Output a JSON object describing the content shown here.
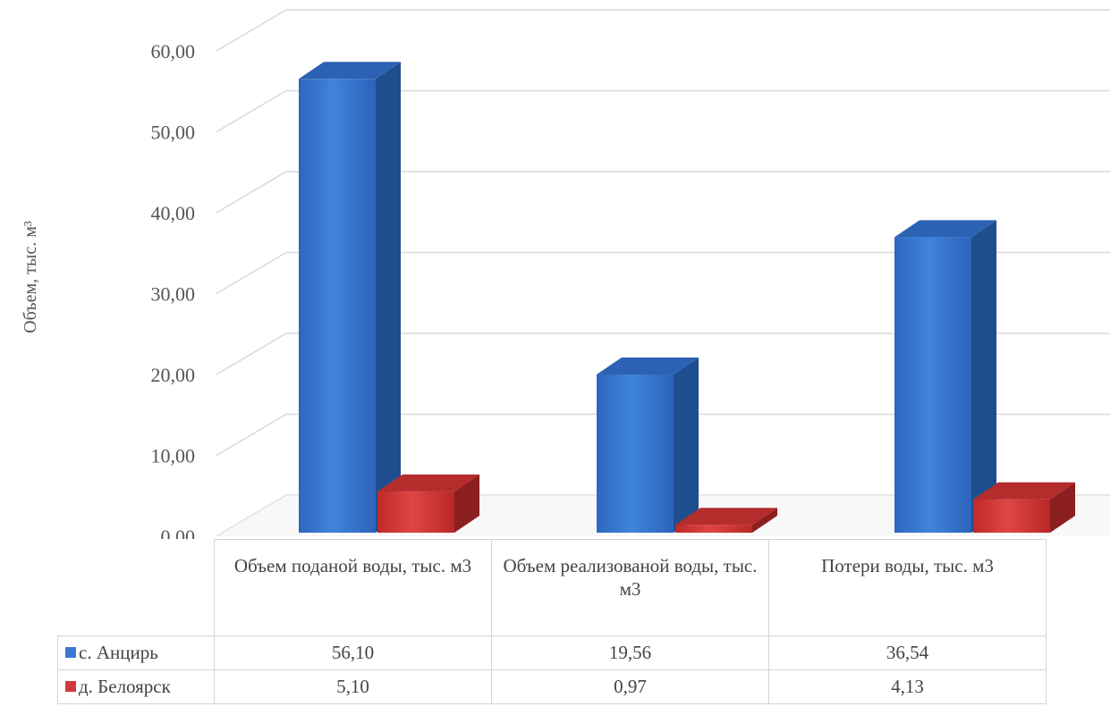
{
  "chart_data": {
    "type": "bar",
    "title": "",
    "xlabel": "",
    "ylabel": "Объем, тыс. м³",
    "ylim": [
      0,
      60
    ],
    "yticks": [
      "0,00",
      "10,00",
      "20,00",
      "30,00",
      "40,00",
      "50,00",
      "60,00"
    ],
    "categories": [
      "Объем поданой воды, тыс. м3",
      "Объем реализованой воды, тыс. м3",
      "Потери воды, тыс. м3"
    ],
    "series": [
      {
        "name": "с. Анцирь",
        "values": [
          56.1,
          19.56,
          36.54
        ],
        "labels": [
          "56,10",
          "19,56",
          "36,54"
        ],
        "color": "#3a78cf"
      },
      {
        "name": "д. Белоярск",
        "values": [
          5.1,
          0.97,
          4.13
        ],
        "labels": [
          "5,10",
          "0,97",
          "4,13"
        ],
        "color": "#d23b3b"
      }
    ],
    "grid": true,
    "style": "3d-column",
    "data_table": true
  }
}
